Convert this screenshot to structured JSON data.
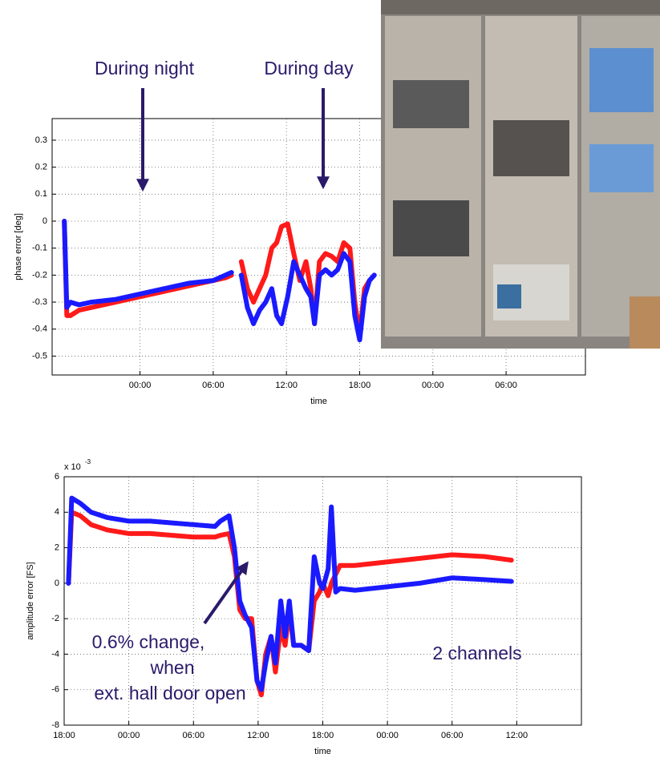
{
  "chart_data": [
    {
      "type": "line",
      "ylabel": "phase error [deg]",
      "xlabel": "time",
      "annotations": [
        "During night",
        "During day"
      ],
      "xlim": [
        16.8,
        60.5
      ],
      "ylim": [
        -0.57,
        0.38
      ],
      "grid": true,
      "xticks": [
        {
          "value": 24,
          "label": "00:00"
        },
        {
          "value": 30,
          "label": "06:00"
        },
        {
          "value": 36,
          "label": "12:00"
        },
        {
          "value": 42,
          "label": "18:00"
        },
        {
          "value": 48,
          "label": "00:00"
        },
        {
          "value": 54,
          "label": "06:00"
        }
      ],
      "yticks": [
        0.3,
        0.2,
        0.1,
        0,
        -0.1,
        -0.2,
        -0.3,
        -0.4,
        -0.5
      ],
      "x": [
        17.8,
        18.0,
        18.3,
        19,
        20,
        22,
        24,
        26,
        28,
        30,
        31,
        31.5,
        32,
        32.3,
        32.8,
        33.3,
        33.8,
        34.3,
        34.8,
        35.2,
        35.6,
        36.1,
        36.6,
        37.1,
        37.6,
        38,
        38.3,
        38.7,
        39.2,
        39.7,
        40.2,
        40.7,
        41.2,
        41.6,
        42,
        42.4,
        42.8,
        43.2
      ],
      "series": [
        {
          "color": "#ff1a1a",
          "values": [
            0,
            -0.35,
            -0.35,
            -0.33,
            -0.32,
            -0.3,
            -0.28,
            -0.26,
            -0.24,
            -0.22,
            -0.21,
            -0.2,
            null,
            -0.15,
            -0.25,
            -0.3,
            -0.25,
            -0.2,
            -0.1,
            -0.08,
            -0.02,
            -0.01,
            -0.12,
            -0.22,
            -0.15,
            -0.25,
            -0.38,
            -0.15,
            -0.12,
            -0.13,
            -0.15,
            -0.08,
            -0.1,
            -0.3,
            -0.42,
            -0.25,
            -0.22,
            -0.2
          ]
        },
        {
          "color": "#1a1aff",
          "values": [
            0,
            -0.32,
            -0.3,
            -0.31,
            -0.3,
            -0.29,
            -0.27,
            -0.25,
            -0.23,
            -0.22,
            -0.2,
            -0.19,
            null,
            -0.2,
            -0.32,
            -0.38,
            -0.33,
            -0.3,
            -0.25,
            -0.35,
            -0.38,
            -0.28,
            -0.15,
            -0.2,
            -0.25,
            -0.28,
            -0.38,
            -0.2,
            -0.18,
            -0.2,
            -0.18,
            -0.12,
            -0.15,
            -0.35,
            -0.44,
            -0.28,
            -0.22,
            -0.2
          ]
        }
      ]
    },
    {
      "type": "line",
      "ylabel": "amplitude error [FS]",
      "xlabel": "time",
      "y_scale_base": "x 10",
      "y_scale_exponent": "-3",
      "annotations": [
        "0.6% change,",
        "when",
        "ext. hall door open",
        "2 channels"
      ],
      "xlim": [
        18,
        66
      ],
      "ylim": [
        -8,
        6
      ],
      "grid": true,
      "xticks": [
        {
          "value": 18,
          "label": "18:00"
        },
        {
          "value": 24,
          "label": "00:00"
        },
        {
          "value": 30,
          "label": "06:00"
        },
        {
          "value": 36,
          "label": "12:00"
        },
        {
          "value": 42,
          "label": "18:00"
        },
        {
          "value": 48,
          "label": "00:00"
        },
        {
          "value": 54,
          "label": "06:00"
        },
        {
          "value": 60,
          "label": "12:00"
        }
      ],
      "yticks": [
        6,
        4,
        2,
        0,
        -2,
        -4,
        -6,
        -8
      ],
      "x": [
        18.4,
        18.7,
        19.5,
        20.5,
        22,
        24,
        26,
        28,
        30,
        32,
        32.5,
        33.3,
        33.8,
        34.3,
        34.8,
        35.4,
        35.9,
        36.3,
        36.7,
        37.2,
        37.6,
        38.1,
        38.5,
        38.9,
        39.3,
        40,
        40.7,
        41.2,
        41.7,
        42,
        42.5,
        42.8,
        43.2,
        43.6,
        45,
        48,
        51,
        54,
        57,
        59.5
      ],
      "series": [
        {
          "color": "#ff1a1a",
          "values": [
            0,
            4,
            3.8,
            3.3,
            3,
            2.8,
            2.8,
            2.7,
            2.6,
            2.6,
            2.7,
            2.8,
            1.5,
            -1.5,
            -2,
            -2,
            -5.5,
            -6.3,
            -4,
            -3,
            -5,
            -2.5,
            -3.5,
            -1.5,
            -3.5,
            -3.5,
            -3.8,
            -1,
            -0.5,
            0,
            -0.7,
            0,
            0.5,
            1,
            1,
            1.2,
            1.4,
            1.6,
            1.5,
            1.3
          ]
        },
        {
          "color": "#1a1aff",
          "values": [
            0,
            4.8,
            4.5,
            4,
            3.7,
            3.5,
            3.5,
            3.4,
            3.3,
            3.2,
            3.5,
            3.8,
            2,
            -1,
            -1.8,
            -2.5,
            -5.5,
            -6,
            -4.5,
            -3,
            -4.5,
            -1,
            -3,
            -1,
            -3.5,
            -3.5,
            -3.8,
            1.5,
            0,
            -0.3,
            0.8,
            4.3,
            -0.5,
            -0.3,
            -0.4,
            -0.2,
            0,
            0.3,
            0.2,
            0.1
          ]
        }
      ]
    }
  ]
}
